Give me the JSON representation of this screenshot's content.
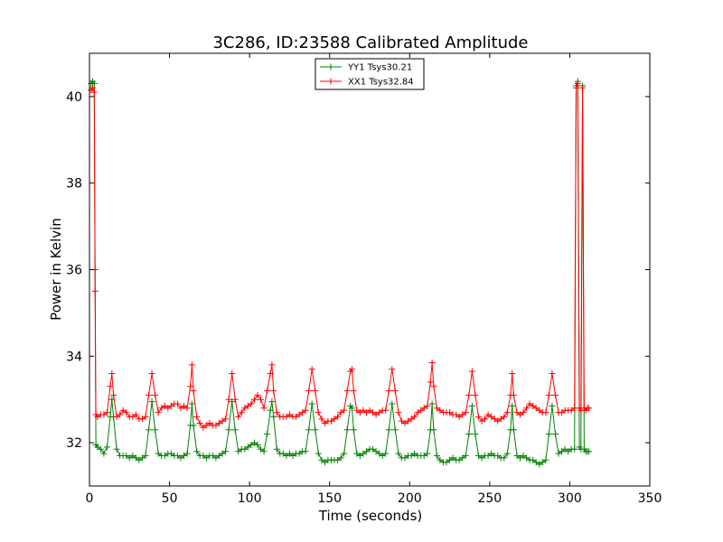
{
  "chart_data": {
    "type": "line",
    "title": "3C286, ID:23588 Calibrated Amplitude",
    "xlabel": "Time (seconds)",
    "ylabel": "Power in Kelvin",
    "xlim": [
      0,
      350
    ],
    "ylim": [
      31,
      41
    ],
    "x_ticks": [
      0,
      50,
      100,
      150,
      200,
      250,
      300,
      350
    ],
    "y_ticks": [
      32,
      34,
      36,
      38,
      40
    ],
    "grid": false,
    "legend_position": "top-center",
    "marker": "+",
    "series": [
      {
        "name": "YY1 Tsys30.21",
        "color": "#008000",
        "x": [
          1,
          2,
          3,
          3.5,
          4,
          5,
          7,
          9,
          11,
          13,
          14,
          15,
          17,
          19,
          21,
          23,
          25,
          27,
          29,
          31,
          33,
          35,
          37,
          39,
          41,
          43,
          45,
          47,
          49,
          51,
          53,
          55,
          57,
          59,
          61,
          63,
          64,
          65,
          67,
          69,
          71,
          73,
          75,
          77,
          79,
          81,
          83,
          85,
          87,
          89,
          91,
          93,
          95,
          97,
          99,
          101,
          103,
          105,
          107,
          109,
          111,
          113,
          114,
          115,
          117,
          119,
          121,
          123,
          125,
          127,
          129,
          131,
          133,
          135,
          137,
          139,
          141,
          143,
          145,
          147,
          149,
          151,
          153,
          155,
          157,
          159,
          161,
          163,
          164,
          165,
          167,
          169,
          171,
          173,
          175,
          177,
          179,
          181,
          183,
          185,
          187,
          189,
          191,
          193,
          195,
          197,
          199,
          201,
          203,
          205,
          207,
          209,
          211,
          213,
          214,
          215,
          217,
          219,
          221,
          223,
          225,
          227,
          229,
          231,
          233,
          235,
          237,
          239,
          241,
          243,
          245,
          247,
          249,
          251,
          253,
          255,
          257,
          259,
          261,
          263,
          264,
          265,
          267,
          269,
          271,
          273,
          275,
          277,
          279,
          281,
          283,
          285,
          287,
          289,
          291,
          293,
          295,
          297,
          299,
          301,
          303,
          304,
          305,
          306,
          307,
          308,
          309,
          310,
          311,
          312
        ],
        "values": [
          40.3,
          40.35,
          40.3,
          36.0,
          31.95,
          31.9,
          31.85,
          31.75,
          31.9,
          32.6,
          33.0,
          32.6,
          31.85,
          31.7,
          31.7,
          31.7,
          31.65,
          31.7,
          31.65,
          31.6,
          31.65,
          31.7,
          32.3,
          32.95,
          32.3,
          31.75,
          31.7,
          31.7,
          31.75,
          31.75,
          31.7,
          31.7,
          31.65,
          31.7,
          31.75,
          32.4,
          32.9,
          32.4,
          31.8,
          31.7,
          31.7,
          31.65,
          31.7,
          31.7,
          31.65,
          31.7,
          31.75,
          31.8,
          32.3,
          32.95,
          32.3,
          31.8,
          31.85,
          31.85,
          31.9,
          31.95,
          32.0,
          31.95,
          31.85,
          31.8,
          32.2,
          32.75,
          32.95,
          32.6,
          31.85,
          31.75,
          31.75,
          31.7,
          31.75,
          31.7,
          31.75,
          31.75,
          31.8,
          31.8,
          32.3,
          32.9,
          32.3,
          31.75,
          31.6,
          31.55,
          31.6,
          31.6,
          31.6,
          31.6,
          31.65,
          31.75,
          32.3,
          32.85,
          32.8,
          32.3,
          31.75,
          31.7,
          31.75,
          31.8,
          31.85,
          31.85,
          31.8,
          31.75,
          31.7,
          31.75,
          32.3,
          32.9,
          32.3,
          31.75,
          31.65,
          31.65,
          31.7,
          31.7,
          31.75,
          31.7,
          31.7,
          31.7,
          31.75,
          32.3,
          32.9,
          32.3,
          31.7,
          31.6,
          31.55,
          31.55,
          31.6,
          31.65,
          31.6,
          31.6,
          31.65,
          31.7,
          32.2,
          32.85,
          32.2,
          31.7,
          31.65,
          31.7,
          31.7,
          31.75,
          31.7,
          31.7,
          31.65,
          31.65,
          31.75,
          32.3,
          32.85,
          32.3,
          31.7,
          31.65,
          31.7,
          31.65,
          31.6,
          31.6,
          31.55,
          31.5,
          31.55,
          31.6,
          32.2,
          32.85,
          32.2,
          31.75,
          31.8,
          31.85,
          31.8,
          31.85,
          31.85,
          40.2,
          40.35,
          31.9,
          31.85,
          40.25,
          31.85,
          31.8,
          31.8,
          31.8
        ]
      },
      {
        "name": "XX1 Tsys32.84",
        "color": "#ff0000",
        "x": [
          1,
          2,
          3,
          3.5,
          4,
          5,
          7,
          9,
          11,
          13,
          14,
          15,
          17,
          19,
          21,
          23,
          25,
          27,
          29,
          31,
          33,
          35,
          37,
          39,
          41,
          43,
          45,
          47,
          49,
          51,
          53,
          55,
          57,
          59,
          61,
          63,
          64,
          65,
          67,
          69,
          71,
          73,
          75,
          77,
          79,
          81,
          83,
          85,
          87,
          89,
          91,
          93,
          95,
          97,
          99,
          101,
          103,
          105,
          107,
          109,
          111,
          113,
          114,
          115,
          117,
          119,
          121,
          123,
          125,
          127,
          129,
          131,
          133,
          135,
          137,
          139,
          141,
          143,
          145,
          147,
          149,
          151,
          153,
          155,
          157,
          159,
          161,
          163,
          164,
          165,
          167,
          169,
          171,
          173,
          175,
          177,
          179,
          181,
          183,
          185,
          187,
          189,
          191,
          193,
          195,
          197,
          199,
          201,
          203,
          205,
          207,
          209,
          211,
          213,
          214,
          215,
          217,
          219,
          221,
          223,
          225,
          227,
          229,
          231,
          233,
          235,
          237,
          239,
          241,
          243,
          245,
          247,
          249,
          251,
          253,
          255,
          257,
          259,
          261,
          263,
          264,
          265,
          267,
          269,
          271,
          273,
          275,
          277,
          279,
          281,
          283,
          285,
          287,
          289,
          291,
          293,
          295,
          297,
          299,
          301,
          303,
          304,
          305,
          306,
          307,
          308,
          309,
          310,
          311,
          312
        ],
        "values": [
          40.15,
          40.2,
          40.1,
          35.5,
          32.65,
          32.6,
          32.65,
          32.65,
          32.7,
          33.3,
          33.6,
          33.1,
          32.6,
          32.65,
          32.75,
          32.7,
          32.6,
          32.6,
          32.65,
          32.55,
          32.55,
          32.6,
          33.1,
          33.6,
          33.1,
          32.7,
          32.8,
          32.85,
          32.8,
          32.85,
          32.9,
          32.9,
          32.8,
          32.85,
          32.8,
          33.3,
          33.8,
          33.2,
          32.6,
          32.45,
          32.35,
          32.4,
          32.45,
          32.4,
          32.4,
          32.45,
          32.5,
          32.55,
          33.0,
          33.6,
          33.0,
          32.6,
          32.7,
          32.8,
          32.85,
          32.9,
          33.0,
          33.1,
          33.0,
          32.8,
          33.2,
          33.6,
          33.8,
          33.2,
          32.7,
          32.6,
          32.6,
          32.6,
          32.65,
          32.6,
          32.6,
          32.65,
          32.7,
          32.75,
          33.2,
          33.7,
          33.2,
          32.7,
          32.55,
          32.45,
          32.5,
          32.5,
          32.55,
          32.6,
          32.7,
          32.75,
          33.2,
          33.65,
          33.7,
          33.2,
          32.75,
          32.7,
          32.75,
          32.7,
          32.75,
          32.7,
          32.65,
          32.7,
          32.75,
          32.75,
          33.2,
          33.7,
          33.2,
          32.7,
          32.5,
          32.45,
          32.5,
          32.55,
          32.6,
          32.7,
          32.75,
          32.8,
          32.85,
          33.4,
          33.85,
          33.3,
          32.8,
          32.75,
          32.7,
          32.7,
          32.7,
          32.65,
          32.65,
          32.6,
          32.65,
          32.7,
          33.1,
          33.65,
          33.1,
          32.6,
          32.5,
          32.55,
          32.65,
          32.6,
          32.55,
          32.5,
          32.55,
          32.6,
          32.7,
          33.1,
          33.6,
          33.1,
          32.7,
          32.65,
          32.7,
          32.8,
          32.9,
          32.85,
          32.8,
          32.75,
          32.7,
          32.7,
          33.1,
          33.6,
          33.1,
          32.7,
          32.7,
          32.75,
          32.75,
          32.75,
          32.8,
          40.25,
          40.3,
          32.8,
          32.75,
          40.2,
          32.8,
          32.75,
          32.8,
          32.8
        ]
      }
    ]
  }
}
